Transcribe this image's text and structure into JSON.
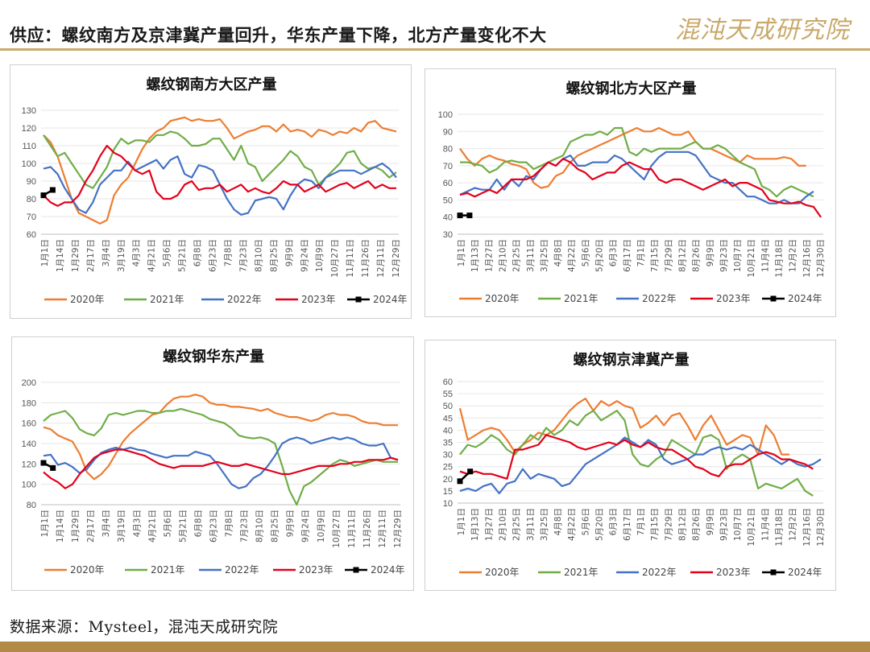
{
  "header": {
    "title": "供应：螺纹南方及京津冀产量回升，华东产量下降，北方产量变化不大",
    "logo": "混沌天成研究院"
  },
  "footer": {
    "source": "数据来源：Mysteel，混沌天成研究院"
  },
  "colors": {
    "2020": "#ed7d31",
    "2021": "#70ad47",
    "2022": "#4472c4",
    "2023": "#e3001b",
    "2024": "#000000"
  },
  "chart_data": [
    {
      "type": "line",
      "title": "螺纹钢南方大区产量",
      "xlabel": "",
      "ylabel": "",
      "ylim": [
        60,
        130
      ],
      "yticks": [
        60,
        70,
        80,
        90,
        100,
        110,
        120,
        130
      ],
      "x_tick_labels": [
        "1月1日",
        "1月14日",
        "1月29日",
        "2月17日",
        "3月4日",
        "3月19日",
        "4月3日",
        "4月21日",
        "5月6日",
        "5月21日",
        "6月8日",
        "6月23日",
        "7月8日",
        "7月23日",
        "8月10日",
        "8月25日",
        "9月9日",
        "9月24日",
        "10月9日",
        "10月27日",
        "11月11日",
        "11月26日",
        "12月11日",
        "12月29日"
      ],
      "series": [
        {
          "name": "2020年",
          "values": [
            116,
            112,
            104,
            92,
            80,
            72,
            70,
            68,
            66,
            68,
            82,
            88,
            92,
            100,
            108,
            114,
            118,
            120,
            124,
            125,
            126,
            124,
            125,
            124,
            124,
            125,
            120,
            114,
            116,
            118,
            119,
            121,
            121,
            118,
            122,
            118,
            119,
            118,
            115,
            119,
            118,
            116,
            118,
            117,
            120,
            118,
            123,
            124,
            120,
            119,
            118
          ]
        },
        {
          "name": "2021年",
          "values": [
            116,
            110,
            104,
            106,
            100,
            94,
            88,
            86,
            92,
            98,
            108,
            114,
            111,
            113,
            113,
            112,
            116,
            116,
            118,
            117,
            114,
            110,
            110,
            111,
            114,
            114,
            108,
            102,
            110,
            100,
            98,
            90,
            94,
            98,
            102,
            107,
            104,
            98,
            96,
            88,
            92,
            96,
            100,
            106,
            107,
            100,
            97,
            98,
            96,
            92,
            95
          ]
        },
        {
          "name": "2022年",
          "values": [
            97,
            98,
            94,
            86,
            80,
            74,
            72,
            78,
            88,
            92,
            96,
            96,
            101,
            96,
            98,
            100,
            102,
            97,
            102,
            104,
            94,
            92,
            99,
            98,
            96,
            88,
            80,
            74,
            71,
            72,
            79,
            80,
            81,
            80,
            74,
            82,
            88,
            91,
            90,
            86,
            92,
            94,
            96,
            96,
            96,
            94,
            96,
            98,
            100,
            97,
            92
          ]
        },
        {
          "name": "2023年",
          "values": [
            82,
            78,
            76,
            78,
            78,
            82,
            90,
            96,
            104,
            110,
            106,
            104,
            100,
            96,
            94,
            96,
            84,
            80,
            80,
            82,
            88,
            90,
            85,
            86,
            86,
            88,
            84,
            86,
            88,
            84,
            86,
            84,
            83,
            86,
            90,
            88,
            88,
            84,
            86,
            88,
            84,
            86,
            88,
            89,
            86,
            88,
            90,
            86,
            88,
            86,
            86
          ]
        },
        {
          "name": "2024年",
          "values": [
            82,
            85
          ]
        }
      ]
    },
    {
      "type": "line",
      "title": "螺纹钢北方大区产量",
      "xlabel": "",
      "ylabel": "",
      "ylim": [
        30,
        100
      ],
      "yticks": [
        30,
        40,
        50,
        60,
        70,
        80,
        90,
        100
      ],
      "x_tick_labels": [
        "1月1日",
        "1月13日",
        "1月27日",
        "2月10日",
        "2月25日",
        "3月11日",
        "3月25日",
        "4月8日",
        "4月22日",
        "5月6日",
        "5月20日",
        "6月3日",
        "6月17日",
        "7月1日",
        "7月15日",
        "7月29日",
        "8月12日",
        "8月26日",
        "9月9日",
        "9月23日",
        "10月7日",
        "10月21日",
        "11月4日",
        "11月18日",
        "12月2日",
        "12月16日",
        "12月30日"
      ],
      "series": [
        {
          "name": "2020年",
          "values": [
            80,
            74,
            70,
            74,
            76,
            74,
            73,
            71,
            70,
            68,
            60,
            57,
            58,
            64,
            66,
            72,
            76,
            78,
            80,
            82,
            84,
            86,
            88,
            90,
            92,
            90,
            90,
            92,
            90,
            88,
            88,
            90,
            84,
            80,
            80,
            78,
            76,
            74,
            72,
            76,
            74,
            74,
            74,
            74,
            75,
            74,
            70,
            70
          ]
        },
        {
          "name": "2021年",
          "values": [
            72,
            72,
            71,
            70,
            66,
            68,
            72,
            73,
            72,
            72,
            68,
            70,
            72,
            74,
            76,
            84,
            86,
            88,
            88,
            90,
            88,
            92,
            92,
            78,
            76,
            80,
            78,
            80,
            80,
            80,
            80,
            82,
            84,
            80,
            80,
            82,
            80,
            76,
            72,
            70,
            68,
            58,
            56,
            52,
            56,
            58,
            56,
            54,
            52
          ]
        },
        {
          "name": "2022年",
          "values": [
            53,
            55,
            57,
            56,
            56,
            62,
            56,
            62,
            58,
            64,
            62,
            68,
            72,
            70,
            74,
            76,
            70,
            70,
            72,
            72,
            72,
            76,
            74,
            70,
            66,
            62,
            70,
            75,
            78,
            78,
            78,
            78,
            76,
            70,
            64,
            62,
            60,
            60,
            56,
            52,
            52,
            50,
            48,
            48,
            50,
            48,
            48,
            52,
            55
          ]
        },
        {
          "name": "2023年",
          "values": [
            53,
            54,
            52,
            54,
            56,
            54,
            58,
            62,
            62,
            62,
            64,
            68,
            72,
            70,
            74,
            72,
            68,
            66,
            62,
            64,
            66,
            66,
            70,
            72,
            70,
            68,
            68,
            62,
            60,
            62,
            62,
            60,
            58,
            56,
            58,
            60,
            62,
            58,
            60,
            60,
            58,
            56,
            50,
            49,
            48,
            48,
            49,
            47,
            46,
            40
          ]
        },
        {
          "name": "2024年",
          "values": [
            41,
            41
          ]
        }
      ]
    },
    {
      "type": "line",
      "title": "螺纹钢华东产量",
      "xlabel": "",
      "ylabel": "",
      "ylim": [
        80,
        200
      ],
      "yticks": [
        80,
        100,
        120,
        140,
        160,
        180,
        200
      ],
      "x_tick_labels": [
        "1月1日",
        "1月14日",
        "1月29日",
        "2月17日",
        "3月4日",
        "3月19日",
        "4月3日",
        "4月21日",
        "5月6日",
        "5月21日",
        "6月8日",
        "6月23日",
        "7月8日",
        "7月23日",
        "8月10日",
        "8月25日",
        "9月9日",
        "9月24日",
        "10月9日",
        "10月27日",
        "11月11日",
        "11月26日",
        "12月11日",
        "12月29日"
      ],
      "series": [
        {
          "name": "2020年",
          "values": [
            156,
            154,
            148,
            145,
            142,
            130,
            112,
            105,
            110,
            118,
            130,
            142,
            150,
            156,
            162,
            168,
            170,
            178,
            184,
            186,
            186,
            188,
            186,
            180,
            178,
            178,
            176,
            176,
            175,
            174,
            172,
            174,
            170,
            168,
            166,
            166,
            164,
            162,
            164,
            168,
            170,
            168,
            168,
            166,
            162,
            160,
            160,
            158,
            158,
            158
          ]
        },
        {
          "name": "2021年",
          "values": [
            162,
            168,
            170,
            172,
            165,
            154,
            150,
            148,
            155,
            168,
            170,
            168,
            170,
            172,
            172,
            170,
            170,
            172,
            172,
            174,
            172,
            170,
            168,
            164,
            162,
            160,
            155,
            148,
            146,
            145,
            146,
            144,
            140,
            118,
            94,
            80,
            98,
            102,
            108,
            114,
            120,
            124,
            122,
            118,
            120,
            122,
            124,
            122,
            122,
            122
          ]
        },
        {
          "name": "2022年",
          "values": [
            128,
            129,
            119,
            121,
            117,
            111,
            115,
            124,
            131,
            134,
            136,
            134,
            136,
            134,
            133,
            130,
            128,
            126,
            128,
            128,
            128,
            132,
            130,
            128,
            120,
            110,
            100,
            96,
            98,
            106,
            110,
            118,
            128,
            140,
            144,
            146,
            144,
            140,
            142,
            144,
            146,
            144,
            146,
            144,
            140,
            138,
            138,
            140,
            126,
            124
          ]
        },
        {
          "name": "2023年",
          "values": [
            112,
            106,
            102,
            96,
            100,
            110,
            118,
            126,
            130,
            132,
            134,
            134,
            132,
            130,
            128,
            124,
            120,
            118,
            116,
            118,
            118,
            118,
            118,
            120,
            122,
            120,
            118,
            118,
            120,
            118,
            116,
            114,
            112,
            110,
            110,
            112,
            114,
            116,
            118,
            118,
            118,
            120,
            120,
            122,
            122,
            124,
            124,
            124,
            126,
            124
          ]
        },
        {
          "name": "2024年",
          "values": [
            121,
            116
          ]
        }
      ]
    },
    {
      "type": "line",
      "title": "螺纹钢京津冀产量",
      "xlabel": "",
      "ylabel": "",
      "ylim": [
        10,
        60
      ],
      "yticks": [
        10,
        15,
        20,
        25,
        30,
        35,
        40,
        45,
        50,
        55,
        60
      ],
      "x_tick_labels": [
        "1月1日",
        "1月13日",
        "1月27日",
        "2月10日",
        "2月25日",
        "3月11日",
        "3月25日",
        "4月8日",
        "4月22日",
        "5月6日",
        "5月20日",
        "6月3日",
        "6月17日",
        "7月1日",
        "7月15日",
        "7月29日",
        "8月12日",
        "8月26日",
        "9月9日",
        "9月23日",
        "10月7日",
        "10月21日",
        "11月4日",
        "11月18日",
        "12月2日",
        "12月16日",
        "12月30日"
      ],
      "series": [
        {
          "name": "2020年",
          "values": [
            49,
            36,
            38,
            40,
            41,
            40,
            36,
            31,
            34,
            36,
            39,
            38,
            40,
            44,
            48,
            51,
            53,
            48,
            52,
            50,
            52,
            50,
            49,
            41,
            43,
            46,
            42,
            46,
            47,
            42,
            36,
            42,
            46,
            40,
            34,
            36,
            38,
            37,
            30,
            42,
            38,
            30,
            30
          ]
        },
        {
          "name": "2021年",
          "values": [
            30,
            34,
            33,
            35,
            38,
            36,
            32,
            30,
            34,
            38,
            36,
            41,
            38,
            40,
            44,
            42,
            46,
            48,
            44,
            46,
            48,
            44,
            30,
            26,
            25,
            28,
            30,
            36,
            34,
            32,
            30,
            37,
            38,
            36,
            24,
            28,
            30,
            28,
            16,
            18,
            17,
            16,
            18,
            20,
            15,
            13
          ]
        },
        {
          "name": "2022年",
          "values": [
            15,
            16,
            15,
            17,
            18,
            14,
            18,
            19,
            24,
            20,
            22,
            21,
            20,
            17,
            18,
            22,
            26,
            28,
            30,
            32,
            34,
            37,
            35,
            33,
            36,
            34,
            28,
            26,
            27,
            28,
            30,
            30,
            32,
            33,
            32,
            33,
            32,
            34,
            32,
            30,
            28,
            26,
            28,
            26,
            25,
            26,
            28
          ]
        },
        {
          "name": "2023年",
          "values": [
            23,
            22,
            23,
            22,
            22,
            21,
            20,
            32,
            32,
            33,
            34,
            38,
            37,
            36,
            35,
            33,
            32,
            33,
            34,
            35,
            34,
            36,
            34,
            33,
            35,
            33,
            32,
            32,
            30,
            28,
            25,
            24,
            22,
            21,
            25,
            26,
            26,
            28,
            30,
            31,
            30,
            28,
            28,
            27,
            26,
            24
          ]
        },
        {
          "name": "2024年",
          "values": [
            19,
            23
          ]
        }
      ]
    }
  ]
}
